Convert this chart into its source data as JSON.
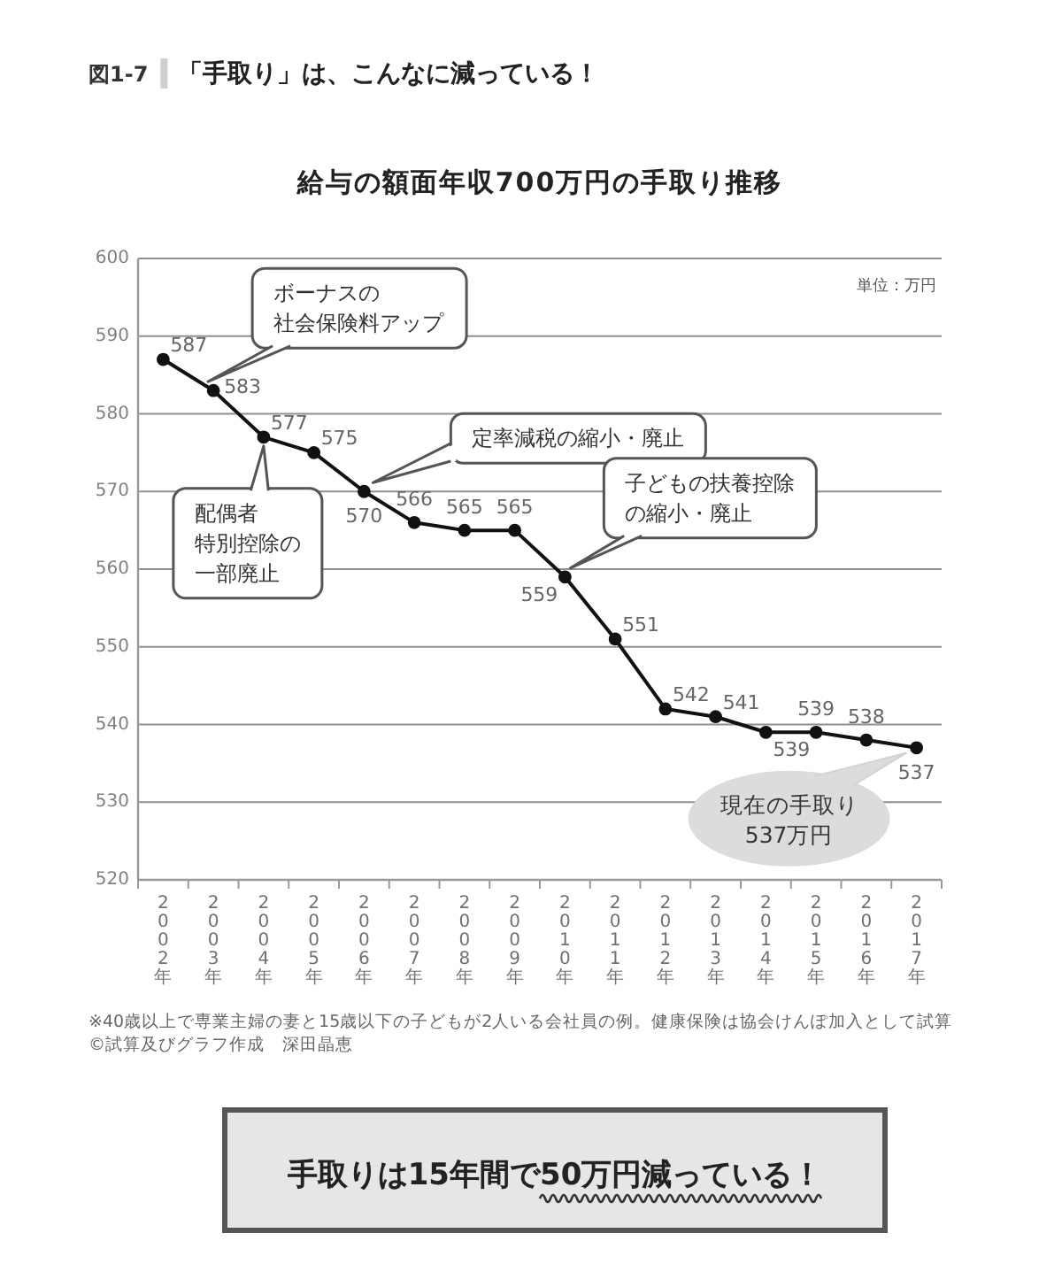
{
  "chart_data": {
    "type": "line",
    "title": "給与の額面年収700万円の手取り推移",
    "categories": [
      "2002年",
      "2003年",
      "2004年",
      "2005年",
      "2006年",
      "2007年",
      "2008年",
      "2009年",
      "2010年",
      "2011年",
      "2012年",
      "2013年",
      "2014年",
      "2015年",
      "2016年",
      "2017年"
    ],
    "series": [
      {
        "color": "#111111",
        "values": [
          587,
          583,
          577,
          575,
          570,
          566,
          565,
          565,
          559,
          551,
          542,
          541,
          539,
          539,
          538,
          537
        ]
      }
    ],
    "ylim": [
      520,
      600
    ],
    "yticks": [
      520,
      530,
      540,
      550,
      560,
      570,
      580,
      590,
      600
    ],
    "grid": "y",
    "marker": "circle",
    "line_style": "solid",
    "data_labels": true,
    "annotations": [
      "図1-7",
      "「手取り」は、こんなに減っている！",
      "単位：万円",
      {
        "text": "ボーナスの社会保険料アップ",
        "x": "2003年",
        "y": 583
      },
      {
        "text": "配偶者特別控除の一部廃止",
        "x": "2004年",
        "y": 577
      },
      {
        "text": "定率減税の縮小・廃止",
        "x": "2006年",
        "y": 570
      },
      {
        "text": "子どもの扶養控除の縮小・廃止",
        "x": "2010年",
        "y": 559
      },
      {
        "text": "現在の手取り537万円",
        "x": "2017年",
        "y": 537
      },
      "※40歳以上で専業主婦の妻と15歳以下の子どもが2人いる会社員の例。健康保険は協会けんぽ加入として試算",
      "©試算及びグラフ作成　深田晶恵",
      "手取りは15年間で50万円減っている！"
    ]
  }
}
